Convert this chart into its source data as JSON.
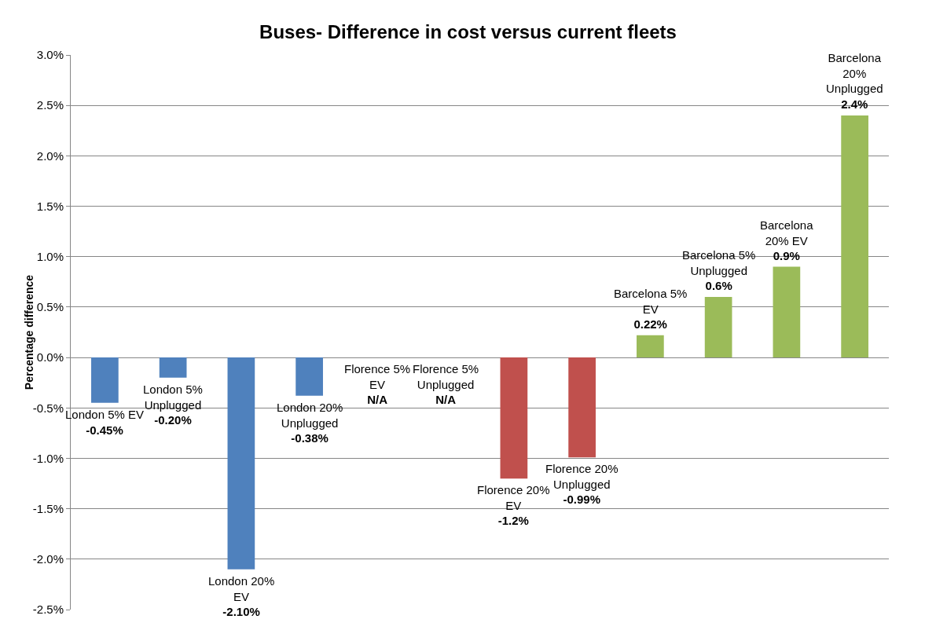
{
  "chart_data": {
    "type": "bar",
    "title": "Buses- Difference in cost versus current fleets",
    "ylabel": "Percentage difference",
    "categories": [
      "London 5% EV",
      "London 5% Unplugged",
      "London 20% EV",
      "London 20% Unplugged",
      "Florence 5% EV",
      "Florence 5% Unplugged",
      "Florence 20% EV",
      "Florence 20% Unplugged",
      "Barcelona 5% EV",
      "Barcelona 5% Unplugged",
      "Barcelona 20% EV",
      "Barcelona 20% Unplugged"
    ],
    "values": [
      -0.45,
      -0.2,
      -2.1,
      -0.38,
      null,
      null,
      -1.2,
      -0.99,
      0.22,
      0.6,
      0.9,
      2.4
    ],
    "value_labels": [
      "-0.45%",
      "-0.20%",
      "-2.10%",
      "-0.38%",
      "N/A",
      "N/A",
      "-1.2%",
      "-0.99%",
      "0.22%",
      "0.6%",
      "0.9%",
      "2.4%"
    ],
    "colors": [
      "#4f81bd",
      "#4f81bd",
      "#4f81bd",
      "#4f81bd",
      "#c0504d",
      "#c0504d",
      "#c0504d",
      "#c0504d",
      "#9bbb59",
      "#9bbb59",
      "#9bbb59",
      "#9bbb59"
    ],
    "ylim": [
      -2.5,
      3.0
    ],
    "yticks": [
      {
        "value": -2.5,
        "label": "-2.5%"
      },
      {
        "value": -2.0,
        "label": "-2.0%"
      },
      {
        "value": -1.5,
        "label": "-1.5%"
      },
      {
        "value": -1.0,
        "label": "-1.0%"
      },
      {
        "value": -0.5,
        "label": "-0.5%"
      },
      {
        "value": 0,
        "label": "0.0%"
      },
      {
        "value": 0.5,
        "label": "0.5%"
      },
      {
        "value": 1.0,
        "label": "1.0%"
      },
      {
        "value": 1.5,
        "label": "1.5%"
      },
      {
        "value": 2.0,
        "label": "2.0%"
      },
      {
        "value": 2.5,
        "label": "2.5%"
      },
      {
        "value": 3.0,
        "label": "3.0%"
      }
    ],
    "grid": "y"
  }
}
